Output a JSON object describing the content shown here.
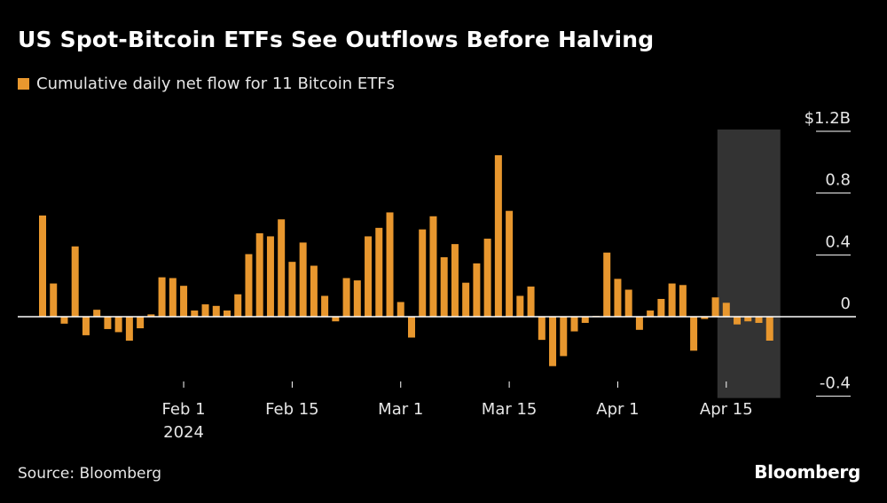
{
  "header": {
    "title": "US Spot-Bitcoin ETFs See Outflows Before Halving",
    "legend_label": "Cumulative daily net flow for 11 Bitcoin ETFs"
  },
  "footer": {
    "source": "Source: Bloomberg",
    "brand": "Bloomberg"
  },
  "colors": {
    "background": "#000000",
    "bar": "#e8972e",
    "zero_line": "#ffffff",
    "highlight": "#333333",
    "text": "#e6e6e6"
  },
  "chart_data": {
    "type": "bar",
    "title": "US Spot-Bitcoin ETFs See Outflows Before Halving",
    "series_name": "Cumulative daily net flow for 11 Bitcoin ETFs",
    "unit": "billion USD",
    "ylim": [
      -0.4,
      1.2
    ],
    "y_ticks": [
      {
        "value": 1.2,
        "label": "$1.2B"
      },
      {
        "value": 0.8,
        "label": "0.8"
      },
      {
        "value": 0.4,
        "label": "0.4"
      },
      {
        "value": 0,
        "label": "0"
      },
      {
        "value": -0.4,
        "label": "-0.4"
      }
    ],
    "x_ticks": [
      {
        "index": 13,
        "label": "Feb 1",
        "sublabel": "2024"
      },
      {
        "index": 23,
        "label": "Feb 15",
        "sublabel": ""
      },
      {
        "index": 33,
        "label": "Mar 1",
        "sublabel": ""
      },
      {
        "index": 43,
        "label": "Mar 15",
        "sublabel": ""
      },
      {
        "index": 53,
        "label": "Apr 1",
        "sublabel": ""
      },
      {
        "index": 63,
        "label": "Apr 15",
        "sublabel": ""
      }
    ],
    "values": [
      0.655,
      0.215,
      -0.045,
      0.455,
      -0.12,
      0.045,
      -0.08,
      -0.1,
      -0.155,
      -0.075,
      0.015,
      0.255,
      0.25,
      0.2,
      0.04,
      0.08,
      0.07,
      0.04,
      0.145,
      0.405,
      0.54,
      0.52,
      0.63,
      0.355,
      0.48,
      0.33,
      0.135,
      -0.03,
      0.25,
      0.235,
      0.52,
      0.575,
      0.675,
      0.095,
      -0.135,
      0.565,
      0.65,
      0.385,
      0.47,
      0.22,
      0.345,
      0.505,
      1.045,
      0.685,
      0.135,
      0.195,
      -0.15,
      -0.32,
      -0.255,
      -0.095,
      -0.04,
      0.005,
      0.415,
      0.245,
      0.175,
      -0.085,
      0.04,
      0.115,
      0.215,
      0.205,
      -0.22,
      -0.015,
      0.125,
      0.09,
      -0.05,
      -0.03,
      -0.04,
      -0.155
    ],
    "highlight_range": {
      "start_index": 63,
      "end_index": 67,
      "note": "shaded period around Bitcoin halving"
    }
  }
}
